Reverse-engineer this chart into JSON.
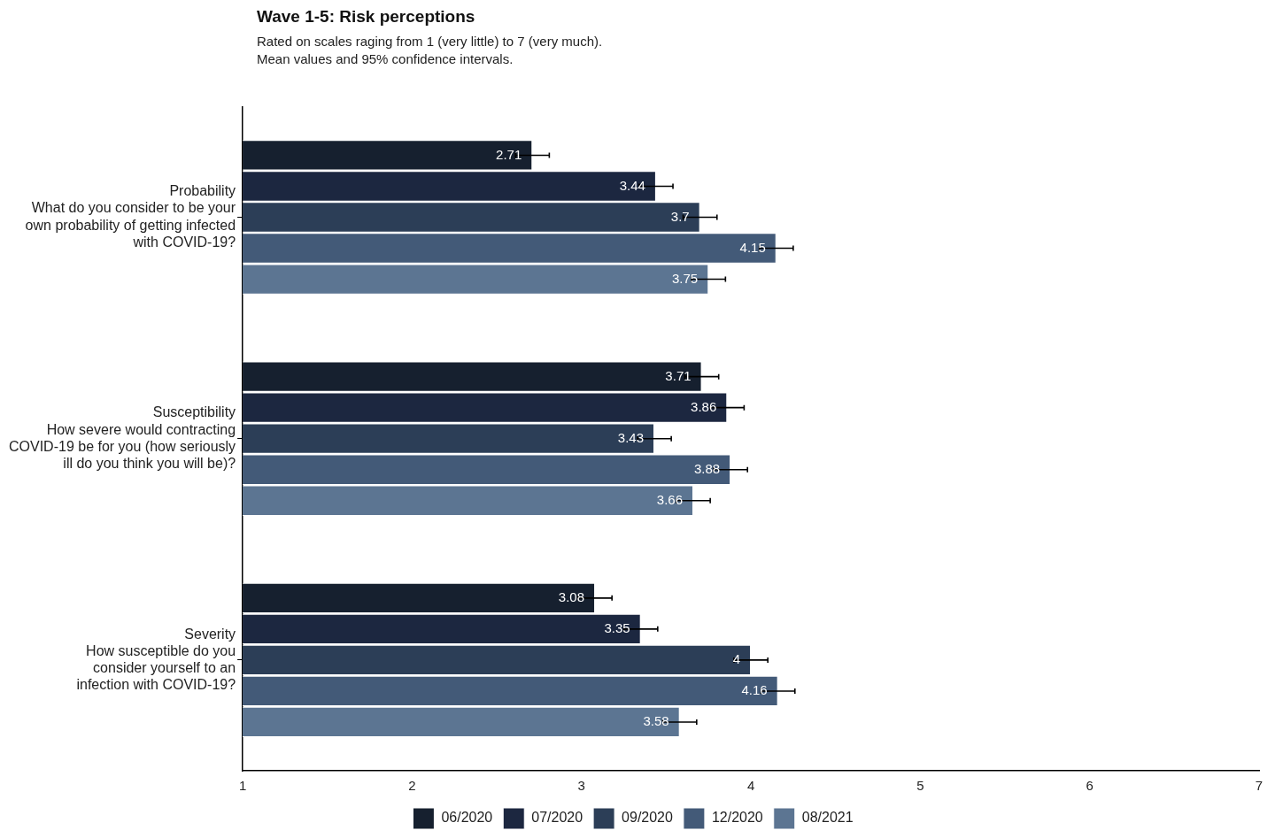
{
  "chart_data": {
    "type": "bar",
    "orientation": "horizontal",
    "title": "Wave 1-5: Risk perceptions",
    "subtitle": "Rated on scales raging from 1 (very little) to 7 (very much).\nMean values and 95% confidence intervals.",
    "categories": [
      "Probability\nWhat do you consider to be your\nown probability of getting infected\nwith COVID-19?",
      "Susceptibility\nHow severe would contracting\nCOVID-19 be for you (how seriously\nill do you think you will be)?",
      "Severity\nHow susceptible do you\nconsider yourself to an\ninfection with COVID-19?"
    ],
    "series": [
      {
        "name": "06/2020",
        "color": "#16202f",
        "values": [
          2.71,
          3.71,
          3.08
        ],
        "errors": [
          0.1,
          0.1,
          0.1
        ]
      },
      {
        "name": "07/2020",
        "color": "#1c2740",
        "values": [
          3.44,
          3.86,
          3.35
        ],
        "errors": [
          0.1,
          0.1,
          0.1
        ]
      },
      {
        "name": "09/2020",
        "color": "#2c3e57",
        "values": [
          3.7,
          3.43,
          4
        ],
        "errors": [
          0.1,
          0.1,
          0.1
        ]
      },
      {
        "name": "12/2020",
        "color": "#435a78",
        "values": [
          4.15,
          3.88,
          4.16
        ],
        "errors": [
          0.1,
          0.1,
          0.1
        ]
      },
      {
        "name": "08/2021",
        "color": "#5c7592",
        "values": [
          3.75,
          3.66,
          3.58
        ],
        "errors": [
          0.1,
          0.1,
          0.1
        ]
      }
    ],
    "xlim": [
      1,
      7
    ],
    "xticks": [
      1,
      2,
      3,
      4,
      5,
      6,
      7
    ],
    "grid": false,
    "legend": "bottom",
    "data_labels": true
  }
}
